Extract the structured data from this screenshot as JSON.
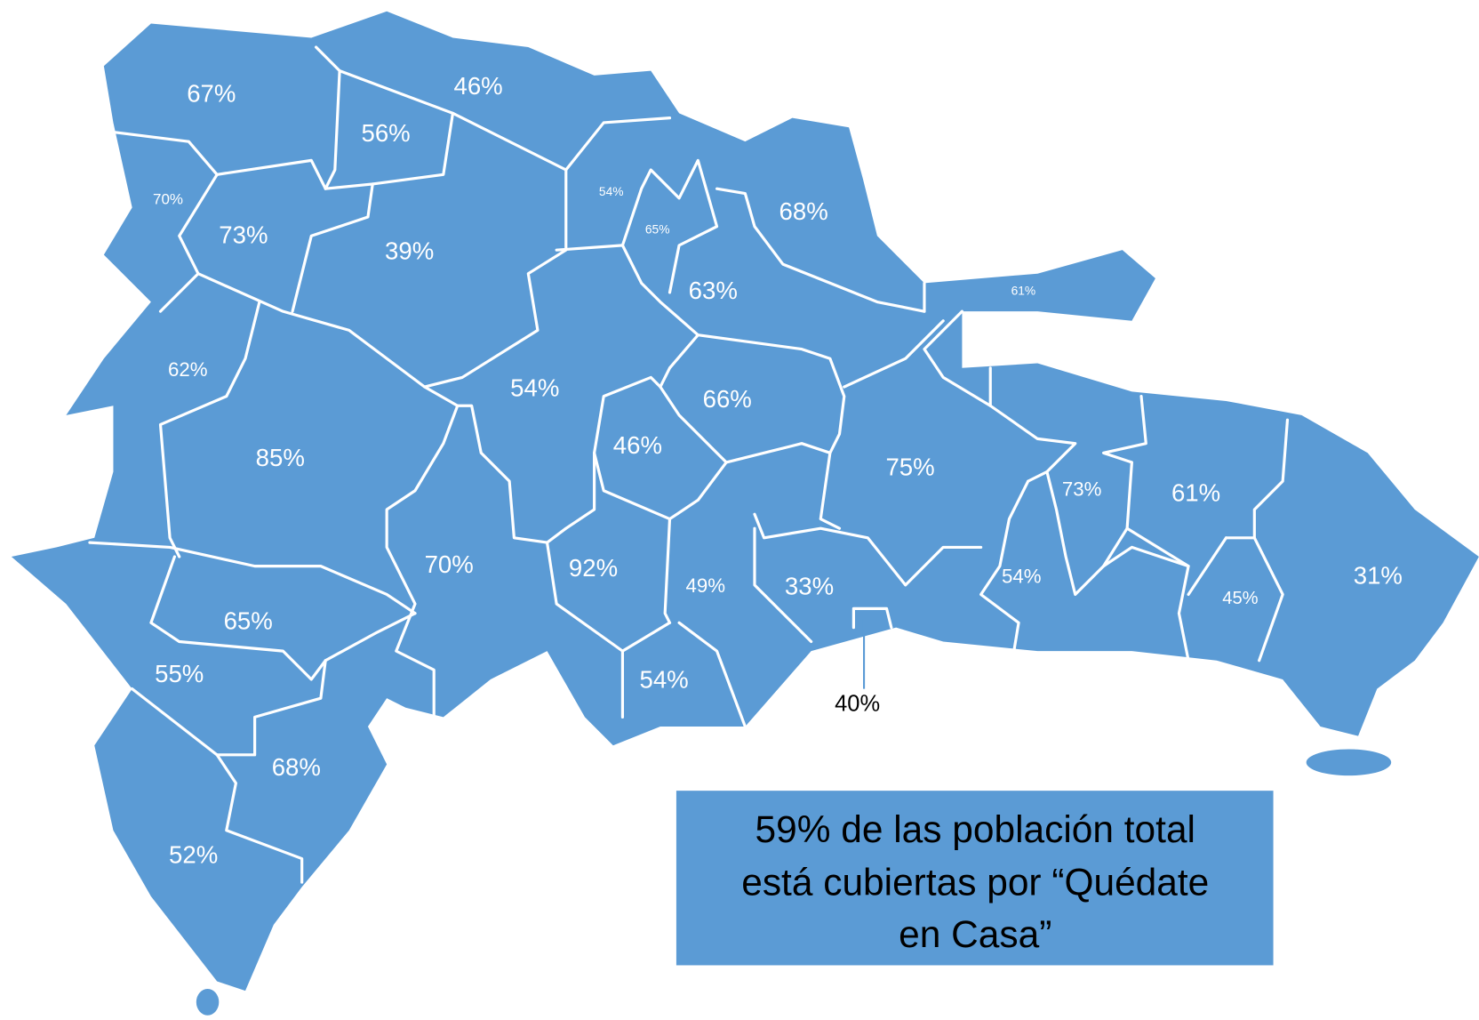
{
  "map": {
    "regions": [
      {
        "label": "67%"
      },
      {
        "label": "46%"
      },
      {
        "label": "56%"
      },
      {
        "label": "70%"
      },
      {
        "label": "73%"
      },
      {
        "label": "39%"
      },
      {
        "label": "54%"
      },
      {
        "label": "65%"
      },
      {
        "label": "68%"
      },
      {
        "label": "63%"
      },
      {
        "label": "61%"
      },
      {
        "label": "62%"
      },
      {
        "label": "54%"
      },
      {
        "label": "66%"
      },
      {
        "label": "46%"
      },
      {
        "label": "85%"
      },
      {
        "label": "75%"
      },
      {
        "label": "73%"
      },
      {
        "label": "61%"
      },
      {
        "label": "70%"
      },
      {
        "label": "92%"
      },
      {
        "label": "49%"
      },
      {
        "label": "33%"
      },
      {
        "label": "54%"
      },
      {
        "label": "45%"
      },
      {
        "label": "31%"
      },
      {
        "label": "65%"
      },
      {
        "label": "55%"
      },
      {
        "label": "54%"
      },
      {
        "label": "40%"
      },
      {
        "label": "68%"
      },
      {
        "label": "52%"
      }
    ],
    "note": {
      "lines": [
        "59% de las población total",
        "está cubiertas por “Quédate",
        "en Casa”"
      ]
    }
  }
}
